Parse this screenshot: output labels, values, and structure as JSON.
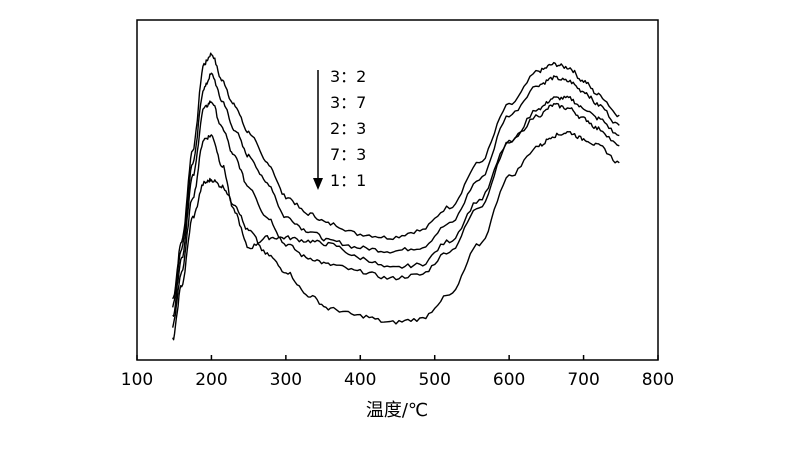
{
  "chart_data": {
    "type": "line",
    "title": "",
    "xlabel": "温度/℃",
    "ylabel": "",
    "xlim": [
      100,
      800
    ],
    "x_ticks": [
      "100",
      "200",
      "300",
      "400",
      "500",
      "600",
      "700",
      "800"
    ],
    "y_ticks_shown": false,
    "grid": false,
    "legend_position": "top-center",
    "legend_arrow": "down",
    "legend": [
      "3：2",
      "3：7",
      "2：3",
      "7：3",
      "1：1"
    ],
    "x": [
      148,
      160,
      175,
      190,
      200,
      215,
      230,
      250,
      275,
      300,
      330,
      360,
      400,
      440,
      480,
      520,
      560,
      600,
      640,
      660,
      680,
      700,
      720,
      748
    ],
    "series": [
      {
        "values": [
          0.18,
          0.35,
          0.62,
          0.87,
          0.9,
          0.82,
          0.75,
          0.67,
          0.58,
          0.48,
          0.43,
          0.4,
          0.37,
          0.36,
          0.38,
          0.45,
          0.58,
          0.75,
          0.85,
          0.87,
          0.86,
          0.82,
          0.78,
          0.72
        ]
      },
      {
        "values": [
          0.16,
          0.33,
          0.58,
          0.8,
          0.84,
          0.76,
          0.68,
          0.6,
          0.52,
          0.42,
          0.38,
          0.35,
          0.33,
          0.32,
          0.33,
          0.4,
          0.53,
          0.72,
          0.81,
          0.83,
          0.82,
          0.79,
          0.75,
          0.69
        ]
      },
      {
        "values": [
          0.13,
          0.3,
          0.54,
          0.74,
          0.76,
          0.68,
          0.6,
          0.51,
          0.42,
          0.34,
          0.3,
          0.28,
          0.26,
          0.24,
          0.25,
          0.32,
          0.45,
          0.64,
          0.74,
          0.77,
          0.77,
          0.74,
          0.71,
          0.66
        ]
      },
      {
        "values": [
          0.1,
          0.26,
          0.48,
          0.65,
          0.66,
          0.57,
          0.44,
          0.33,
          0.36,
          0.36,
          0.35,
          0.34,
          0.3,
          0.27,
          0.28,
          0.35,
          0.47,
          0.64,
          0.72,
          0.75,
          0.74,
          0.71,
          0.68,
          0.63
        ]
      },
      {
        "values": [
          0.06,
          0.22,
          0.42,
          0.52,
          0.53,
          0.51,
          0.46,
          0.38,
          0.31,
          0.26,
          0.19,
          0.15,
          0.13,
          0.11,
          0.12,
          0.19,
          0.34,
          0.54,
          0.63,
          0.66,
          0.67,
          0.65,
          0.63,
          0.58
        ]
      }
    ]
  }
}
